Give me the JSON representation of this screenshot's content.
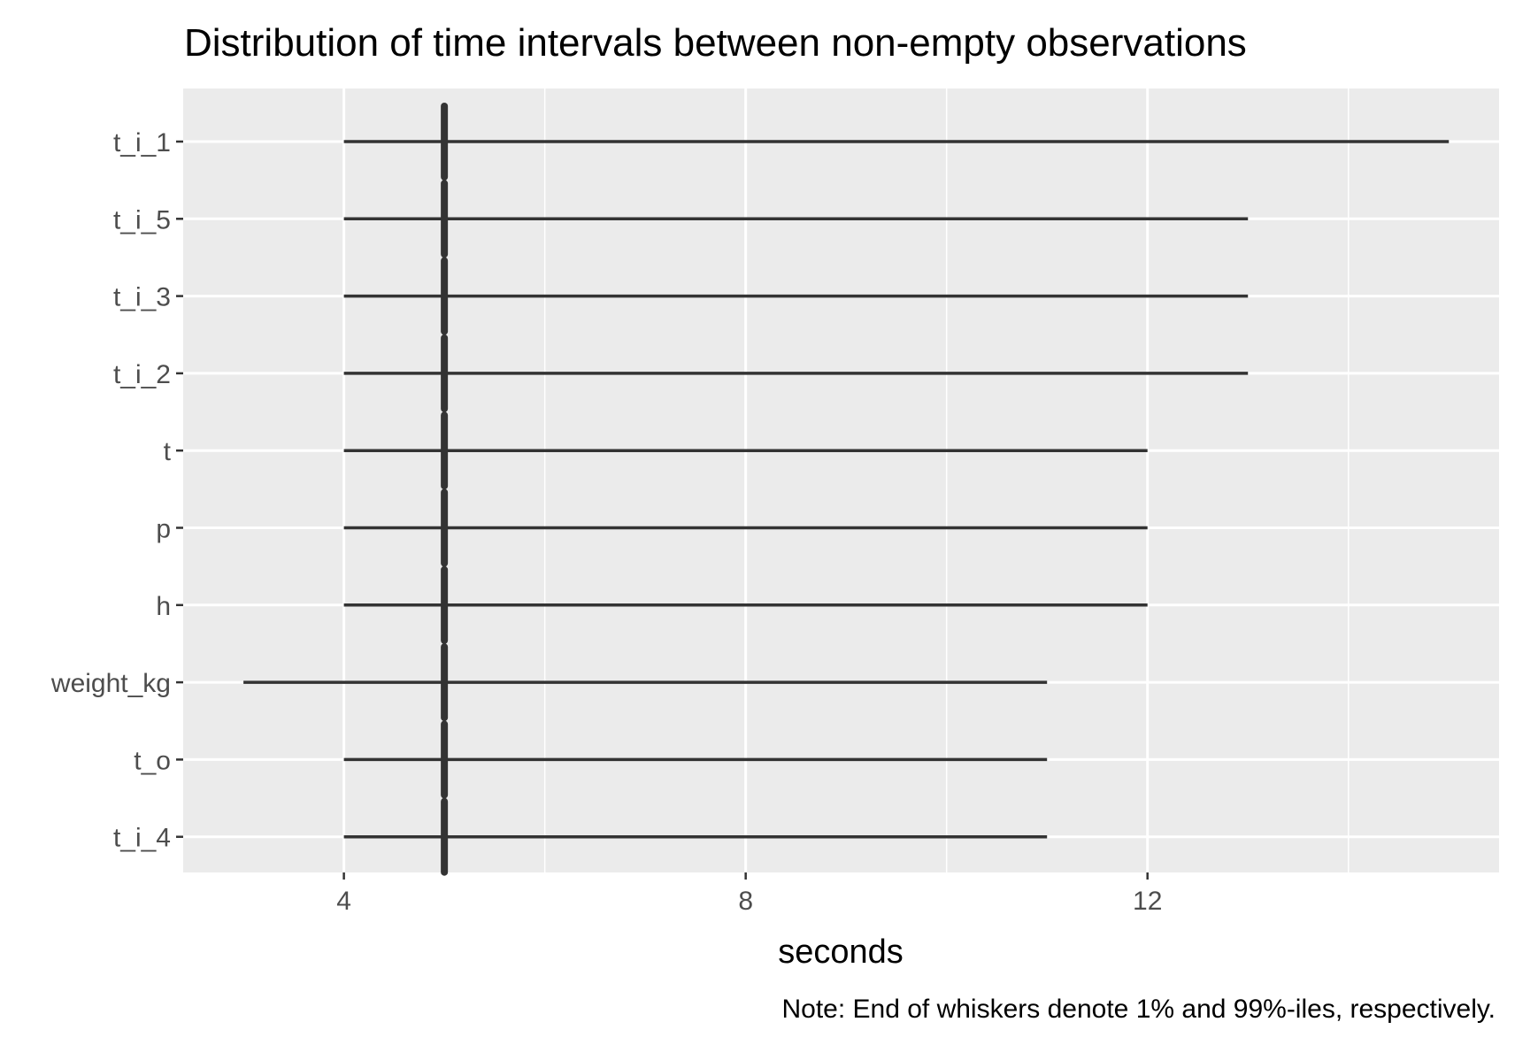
{
  "chart_data": {
    "type": "boxplot",
    "title": "Distribution of time intervals between non-empty observations",
    "xlabel": "seconds",
    "ylabel": "",
    "caption": "Note: End of whiskers denote 1% and 99%-iles, respectively.",
    "xlim": [
      2.4,
      15.5
    ],
    "x_ticks": [
      4,
      8,
      12
    ],
    "x_minor_ticks": [
      6,
      10,
      14
    ],
    "grid": true,
    "legend": "none",
    "categories": [
      "t_i_1",
      "t_i_5",
      "t_i_3",
      "t_i_2",
      "t",
      "p",
      "h",
      "weight_kg",
      "t_o",
      "t_i_4"
    ],
    "series": [
      {
        "boxes": [
          {
            "category": "t_i_1",
            "whisker_low": 4,
            "q1": 5,
            "median": 5,
            "q3": 5,
            "whisker_high": 15
          },
          {
            "category": "t_i_5",
            "whisker_low": 4,
            "q1": 5,
            "median": 5,
            "q3": 5,
            "whisker_high": 13
          },
          {
            "category": "t_i_3",
            "whisker_low": 4,
            "q1": 5,
            "median": 5,
            "q3": 5,
            "whisker_high": 13
          },
          {
            "category": "t_i_2",
            "whisker_low": 4,
            "q1": 5,
            "median": 5,
            "q3": 5,
            "whisker_high": 13
          },
          {
            "category": "t",
            "whisker_low": 4,
            "q1": 5,
            "median": 5,
            "q3": 5,
            "whisker_high": 12
          },
          {
            "category": "p",
            "whisker_low": 4,
            "q1": 5,
            "median": 5,
            "q3": 5,
            "whisker_high": 12
          },
          {
            "category": "h",
            "whisker_low": 4,
            "q1": 5,
            "median": 5,
            "q3": 5,
            "whisker_high": 12
          },
          {
            "category": "weight_kg",
            "whisker_low": 3,
            "q1": 5,
            "median": 5,
            "q3": 5,
            "whisker_high": 11
          },
          {
            "category": "t_o",
            "whisker_low": 4,
            "q1": 5,
            "median": 5,
            "q3": 5,
            "whisker_high": 11
          },
          {
            "category": "t_i_4",
            "whisker_low": 4,
            "q1": 5,
            "median": 5,
            "q3": 5,
            "whisker_high": 11
          }
        ]
      }
    ],
    "colors": {
      "panel_background": "#ebebeb",
      "gridline": "#ffffff",
      "box_line": "#333333",
      "tick_mark": "#333333"
    }
  }
}
